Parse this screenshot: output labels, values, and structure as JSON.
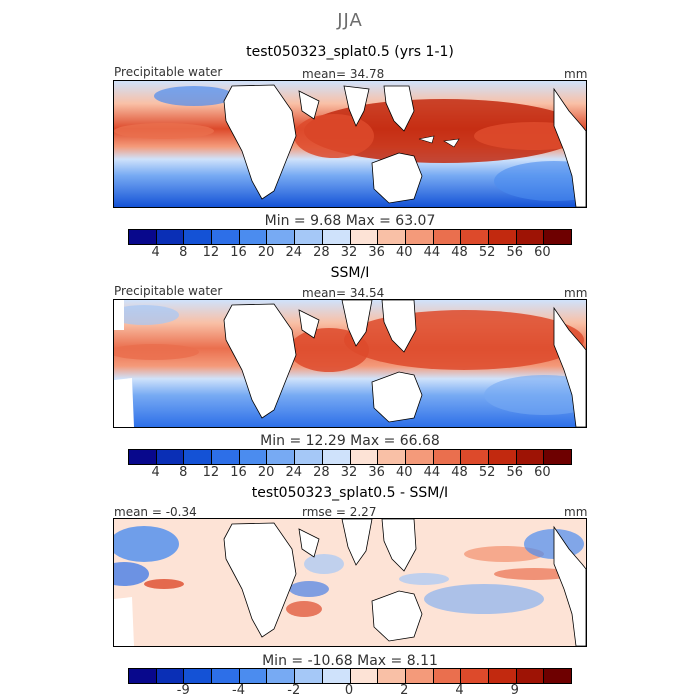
{
  "suptitle": "JJA",
  "legend_colors": [
    "#08088c",
    "#0a2fb6",
    "#1452d6",
    "#2d6fe8",
    "#4b8cef",
    "#77aaf3",
    "#a5c8f7",
    "#cfe2fb",
    "#fde3d6",
    "#f9c0a6",
    "#f49a7a",
    "#ea6f4e",
    "#dd4a2b",
    "#c2290f",
    "#9e1305",
    "#6e0000"
  ],
  "panels": [
    {
      "title": "test050323_splat0.5 (yrs 1-1)",
      "left_label": "Precipitable water",
      "center_label": "mean=  34.78",
      "right_label": "mm",
      "minmax": "Min =    9.68  Max =   63.07",
      "ticks": [
        "4",
        "8",
        "12",
        "16",
        "20",
        "24",
        "28",
        "32",
        "36",
        "40",
        "44",
        "48",
        "52",
        "56",
        "60"
      ]
    },
    {
      "title": "SSM/I",
      "left_label": "Precipitable water",
      "center_label": "mean=  34.54",
      "right_label": "mm",
      "minmax": "Min =   12.29  Max =   66.68",
      "ticks": [
        "4",
        "8",
        "12",
        "16",
        "20",
        "24",
        "28",
        "32",
        "36",
        "40",
        "44",
        "48",
        "52",
        "56",
        "60"
      ]
    },
    {
      "title": "test050323_splat0.5 - SSM/I",
      "left_label": "mean =   -0.34",
      "center_label": "rmse =    2.27",
      "right_label": "mm",
      "minmax": "Min = -10.68  Max =    8.11",
      "ticks": [
        "-9",
        "-4",
        "-2",
        "0",
        "2",
        "4",
        "9"
      ]
    }
  ]
}
